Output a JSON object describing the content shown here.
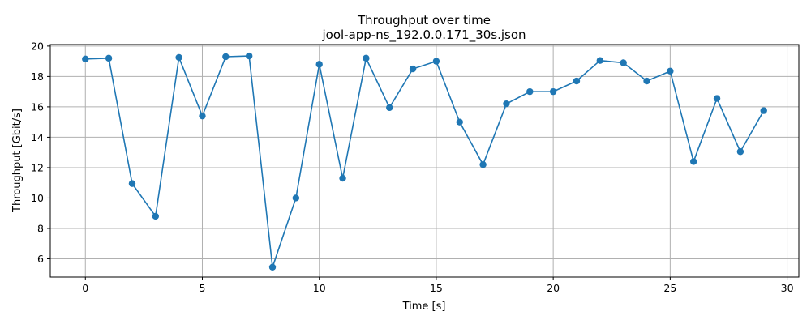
{
  "chart_data": {
    "type": "line",
    "title": "Throughput over time",
    "subtitle": "jool-app-ns_192.0.0.171_30s.json",
    "xlabel": "Time [s]",
    "ylabel": "Throughput [Gbit/s]",
    "xlim": [
      -1.5,
      30.5
    ],
    "ylim": [
      4.8,
      20.1
    ],
    "xticks": [
      0,
      5,
      10,
      15,
      20,
      25,
      30
    ],
    "yticks": [
      6,
      8,
      10,
      12,
      14,
      16,
      18,
      20
    ],
    "grid": true,
    "color": "#1f77b4",
    "marker": "circle",
    "x": [
      0,
      1,
      2,
      3,
      4,
      5,
      6,
      7,
      8,
      9,
      10,
      11,
      12,
      13,
      14,
      15,
      16,
      17,
      18,
      19,
      20,
      21,
      22,
      23,
      24,
      25,
      26,
      27,
      28,
      29
    ],
    "y": [
      19.15,
      19.2,
      10.95,
      8.8,
      19.25,
      15.4,
      19.3,
      19.35,
      5.45,
      10.0,
      18.8,
      11.3,
      19.2,
      15.95,
      18.5,
      19.0,
      15.0,
      12.2,
      16.2,
      17.0,
      17.0,
      17.7,
      19.05,
      18.9,
      17.7,
      18.35,
      12.4,
      16.55,
      13.05,
      15.75
    ]
  }
}
